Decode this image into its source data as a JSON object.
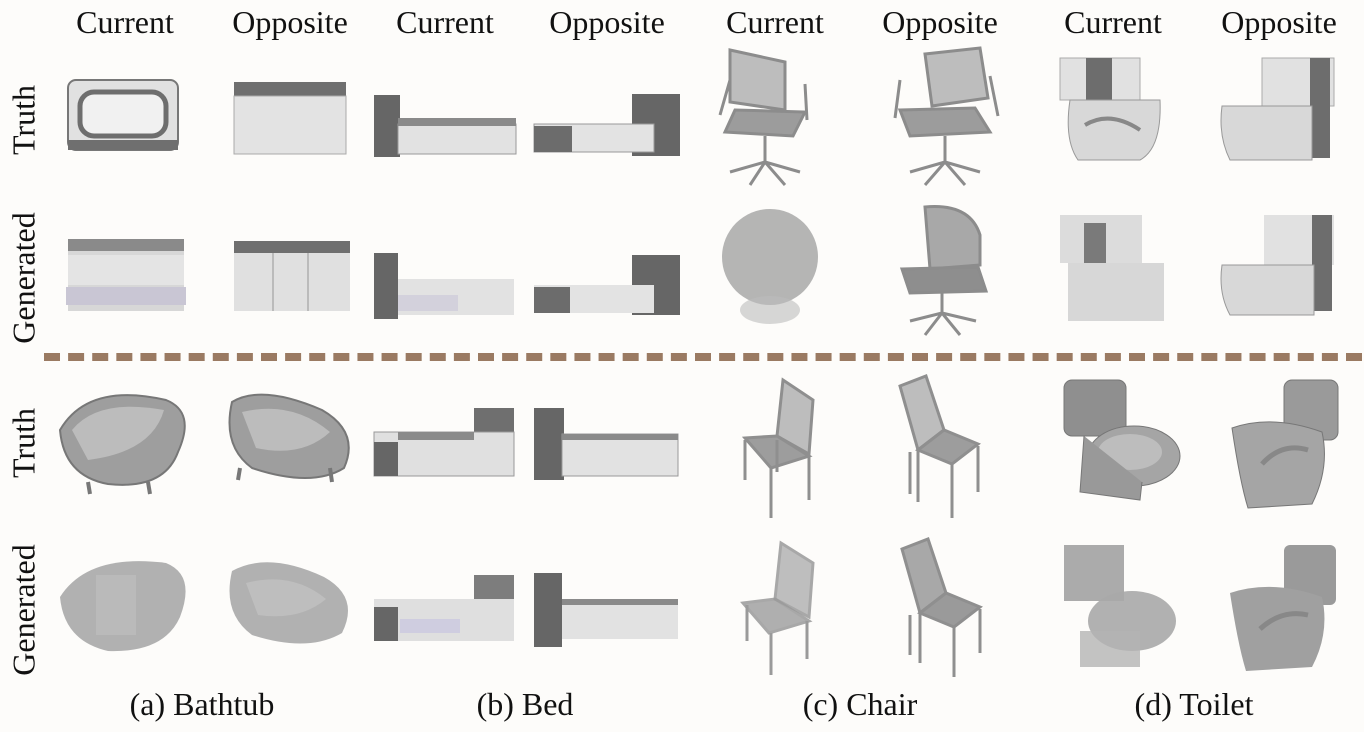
{
  "column_headers": [
    "Current",
    "Opposite",
    "Current",
    "Opposite",
    "Current",
    "Opposite",
    "Current",
    "Opposite"
  ],
  "row_labels": [
    "Truth",
    "Generated",
    "Truth",
    "Generated"
  ],
  "captions": [
    "(a) Bathtub",
    "(b) Bed",
    "(c) Chair",
    "(d) Toilet"
  ],
  "categories": [
    "bathtub",
    "bed",
    "chair",
    "toilet"
  ],
  "colors": {
    "divider": "#9a7a62",
    "object_dark": "#6f6f6f",
    "object_mid": "#a9a9a9",
    "object_light": "#dcdcdc",
    "generated_tint": "#c9c6d4"
  }
}
